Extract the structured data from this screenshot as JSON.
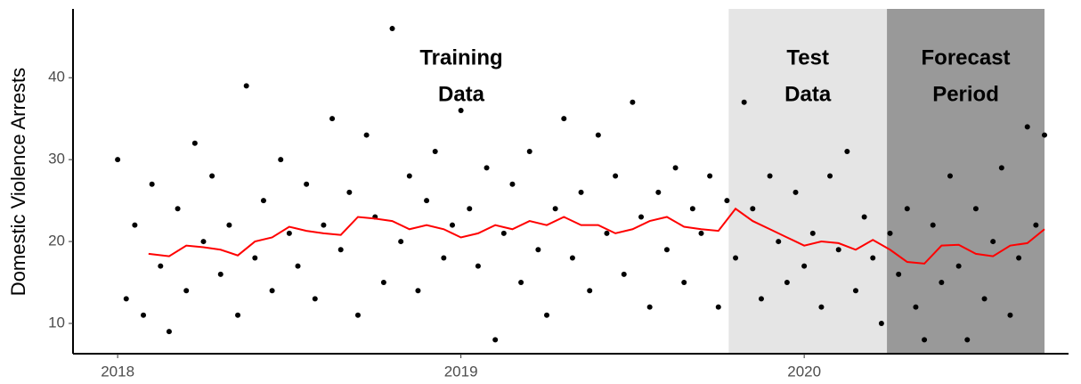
{
  "chart_data": {
    "type": "scatter",
    "y_label": "Domestic Violence Arrests",
    "xlim": [
      2017.87,
      2020.77
    ],
    "ylim": [
      6.3,
      48.4
    ],
    "xticks": [
      2018,
      2019,
      2020
    ],
    "yticks": [
      10,
      20,
      30,
      40
    ],
    "regions": [
      {
        "start": 2019.78,
        "end": 2020.241,
        "color": "#e5e5e5",
        "label": [
          "Test",
          "Data"
        ]
      },
      {
        "start": 2020.241,
        "end": 2020.7,
        "color": "#999999",
        "label": [
          "Forecast",
          "Period"
        ]
      }
    ],
    "annotation": [
      "Training",
      "Data"
    ],
    "series": [
      {
        "kind": "points",
        "color": "#000000",
        "x": [
          2018.0,
          2018.025,
          2018.05,
          2018.075,
          2018.1,
          2018.125,
          2018.15,
          2018.175,
          2018.2,
          2018.225,
          2018.25,
          2018.275,
          2018.3,
          2018.325,
          2018.35,
          2018.375,
          2018.4,
          2018.425,
          2018.45,
          2018.475,
          2018.5,
          2018.525,
          2018.55,
          2018.575,
          2018.6,
          2018.625,
          2018.65,
          2018.675,
          2018.7,
          2018.725,
          2018.75,
          2018.775,
          2018.8,
          2018.825,
          2018.85,
          2018.875,
          2018.9,
          2018.925,
          2018.95,
          2018.975,
          2019.0,
          2019.025,
          2019.05,
          2019.075,
          2019.1,
          2019.125,
          2019.15,
          2019.175,
          2019.2,
          2019.225,
          2019.25,
          2019.275,
          2019.3,
          2019.325,
          2019.35,
          2019.375,
          2019.4,
          2019.425,
          2019.45,
          2019.475,
          2019.5,
          2019.525,
          2019.55,
          2019.575,
          2019.6,
          2019.625,
          2019.65,
          2019.675,
          2019.7,
          2019.725,
          2019.75,
          2019.775,
          2019.8,
          2019.825,
          2019.85,
          2019.875,
          2019.9,
          2019.925,
          2019.95,
          2019.975,
          2020.0,
          2020.025,
          2020.05,
          2020.075,
          2020.1,
          2020.125,
          2020.15,
          2020.175,
          2020.2,
          2020.225,
          2020.25,
          2020.275,
          2020.3,
          2020.325,
          2020.35,
          2020.375,
          2020.4,
          2020.425,
          2020.45,
          2020.475,
          2020.5,
          2020.525,
          2020.55,
          2020.575,
          2020.6,
          2020.625,
          2020.65,
          2020.675,
          2020.7
        ],
        "values": [
          30,
          13,
          22,
          11,
          27,
          17,
          9,
          24,
          14,
          32,
          20,
          28,
          16,
          22,
          11,
          39,
          18,
          25,
          14,
          30,
          21,
          17,
          27,
          13,
          22,
          35,
          19,
          26,
          11,
          33,
          23,
          15,
          46,
          20,
          28,
          14,
          25,
          31,
          18,
          22,
          36,
          24,
          17,
          29,
          8,
          21,
          27,
          15,
          31,
          19,
          11,
          24,
          35,
          18,
          26,
          14,
          33,
          21,
          28,
          16,
          37,
          23,
          12,
          26,
          19,
          29,
          15,
          24,
          21,
          28,
          12,
          25,
          18,
          37,
          24,
          13,
          28,
          20,
          15,
          26,
          17,
          21,
          12,
          28,
          19,
          31,
          14,
          23,
          18,
          10,
          21,
          16,
          24,
          12,
          8,
          22,
          15,
          28,
          17,
          8,
          24,
          13,
          20,
          29,
          11,
          18,
          34,
          22,
          33
        ]
      },
      {
        "kind": "line",
        "color": "#ff0000",
        "x": [
          2018.09,
          2018.15,
          2018.2,
          2018.25,
          2018.3,
          2018.35,
          2018.4,
          2018.45,
          2018.5,
          2018.55,
          2018.6,
          2018.65,
          2018.7,
          2018.75,
          2018.8,
          2018.85,
          2018.9,
          2018.95,
          2019.0,
          2019.05,
          2019.1,
          2019.15,
          2019.2,
          2019.25,
          2019.3,
          2019.35,
          2019.4,
          2019.45,
          2019.5,
          2019.55,
          2019.6,
          2019.65,
          2019.7,
          2019.75,
          2019.8,
          2019.85,
          2019.9,
          2019.95,
          2020.0,
          2020.05,
          2020.1,
          2020.15,
          2020.2,
          2020.25,
          2020.3,
          2020.35,
          2020.4,
          2020.45,
          2020.5,
          2020.55,
          2020.6,
          2020.65,
          2020.7
        ],
        "values": [
          18.5,
          18.2,
          19.5,
          19.3,
          19,
          18.3,
          20,
          20.5,
          21.8,
          21.3,
          21,
          20.8,
          23,
          22.8,
          22.5,
          21.5,
          22,
          21.5,
          20.5,
          21,
          22,
          21.5,
          22.5,
          22,
          23,
          22,
          22,
          21,
          21.5,
          22.5,
          23,
          21.8,
          21.5,
          21.3,
          24,
          22.5,
          21.5,
          20.5,
          19.5,
          20,
          19.8,
          19,
          20.2,
          19,
          17.5,
          17.3,
          19.5,
          19.6,
          18.5,
          18.2,
          19.5,
          19.8,
          21.5
        ]
      }
    ]
  }
}
